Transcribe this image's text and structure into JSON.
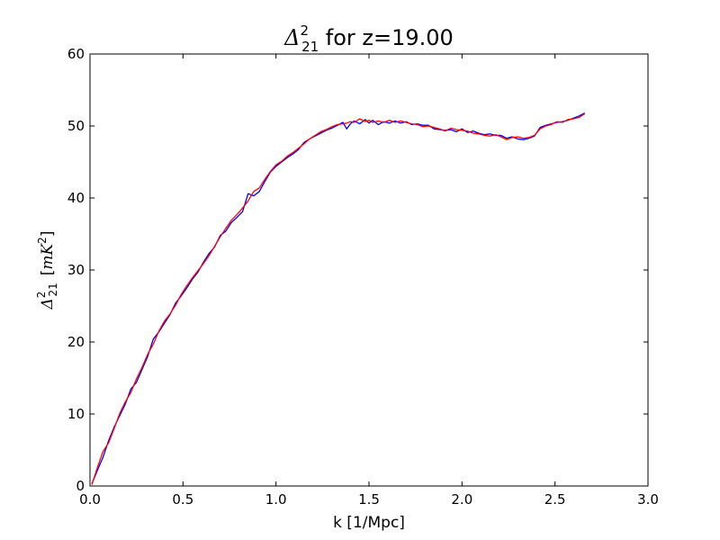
{
  "chart_data": {
    "type": "line",
    "title": {
      "delta_symbol": "Δ",
      "superscript": "2",
      "subscript": "21",
      "suffix": " for z=19.00"
    },
    "xlabel": "k [1/Mpc]",
    "ylabel": {
      "delta_symbol": "Δ",
      "superscript": "2",
      "subscript": "21",
      "unit_open": "[",
      "unit_var": "mK",
      "unit_sup": "2",
      "unit_close": "]"
    },
    "xlim": [
      0,
      3
    ],
    "ylim": [
      0,
      60
    ],
    "xticks": [
      0,
      0.5,
      1,
      1.5,
      2,
      2.5,
      3
    ],
    "xtick_labels": [
      "0.0",
      "0.5",
      "1.0",
      "1.5",
      "2.0",
      "2.5",
      "3.0"
    ],
    "yticks": [
      0,
      10,
      20,
      30,
      40,
      50,
      60
    ],
    "ytick_labels": [
      "0",
      "10",
      "20",
      "30",
      "40",
      "50",
      "60"
    ],
    "grid": false,
    "series": [
      {
        "name": "blue",
        "color": "#0000ff",
        "x": [
          0.01,
          0.04,
          0.07,
          0.1,
          0.13,
          0.16,
          0.19,
          0.22,
          0.25,
          0.28,
          0.31,
          0.34,
          0.37,
          0.4,
          0.43,
          0.46,
          0.49,
          0.52,
          0.55,
          0.58,
          0.61,
          0.64,
          0.67,
          0.7,
          0.73,
          0.76,
          0.79,
          0.82,
          0.85,
          0.88,
          0.91,
          0.94,
          0.97,
          1.0,
          1.03,
          1.06,
          1.09,
          1.12,
          1.15,
          1.18,
          1.21,
          1.24,
          1.27,
          1.3,
          1.33,
          1.36,
          1.38,
          1.4,
          1.42,
          1.45,
          1.48,
          1.5,
          1.52,
          1.55,
          1.58,
          1.61,
          1.64,
          1.67,
          1.7,
          1.73,
          1.76,
          1.79,
          1.82,
          1.85,
          1.88,
          1.91,
          1.94,
          1.97,
          2.0,
          2.03,
          2.06,
          2.09,
          2.12,
          2.15,
          2.18,
          2.21,
          2.24,
          2.27,
          2.3,
          2.33,
          2.36,
          2.39,
          2.42,
          2.45,
          2.48,
          2.51,
          2.54,
          2.57,
          2.6,
          2.63,
          2.66
        ],
        "y": [
          0.3,
          2.2,
          4.0,
          6.3,
          8.2,
          9.8,
          11.4,
          13.5,
          14.4,
          16.2,
          18.0,
          20.4,
          21.4,
          22.6,
          23.8,
          25.4,
          26.4,
          27.5,
          28.7,
          29.7,
          31.1,
          32.3,
          33.2,
          34.8,
          35.4,
          36.6,
          37.3,
          38.1,
          40.6,
          40.3,
          40.9,
          42.3,
          43.6,
          44.4,
          45.0,
          45.6,
          46.1,
          46.7,
          47.7,
          48.2,
          48.6,
          49.0,
          49.4,
          49.7,
          50.1,
          50.5,
          49.6,
          50.3,
          50.7,
          50.3,
          50.9,
          50.4,
          50.8,
          50.2,
          50.6,
          50.4,
          50.7,
          50.4,
          50.6,
          50.2,
          50.3,
          50.1,
          50.1,
          49.6,
          49.5,
          49.4,
          49.5,
          49.2,
          49.6,
          49.1,
          49.3,
          49.0,
          48.8,
          48.9,
          48.7,
          48.7,
          48.3,
          48.5,
          48.2,
          48.1,
          48.3,
          48.6,
          49.8,
          50.1,
          50.3,
          50.5,
          50.6,
          50.8,
          51.1,
          51.4,
          51.8
        ]
      },
      {
        "name": "red",
        "color": "#ff0000",
        "x": [
          0.01,
          0.04,
          0.07,
          0.1,
          0.13,
          0.16,
          0.19,
          0.22,
          0.25,
          0.28,
          0.31,
          0.34,
          0.37,
          0.4,
          0.43,
          0.46,
          0.49,
          0.52,
          0.55,
          0.58,
          0.61,
          0.64,
          0.67,
          0.7,
          0.73,
          0.76,
          0.79,
          0.82,
          0.85,
          0.88,
          0.91,
          0.94,
          0.97,
          1.0,
          1.03,
          1.06,
          1.09,
          1.12,
          1.15,
          1.18,
          1.21,
          1.24,
          1.27,
          1.3,
          1.33,
          1.36,
          1.38,
          1.4,
          1.42,
          1.45,
          1.48,
          1.5,
          1.52,
          1.55,
          1.58,
          1.61,
          1.64,
          1.67,
          1.7,
          1.73,
          1.76,
          1.79,
          1.82,
          1.85,
          1.88,
          1.91,
          1.94,
          1.97,
          2.0,
          2.03,
          2.06,
          2.09,
          2.12,
          2.15,
          2.18,
          2.21,
          2.24,
          2.27,
          2.3,
          2.33,
          2.36,
          2.39,
          2.42,
          2.45,
          2.48,
          2.51,
          2.54,
          2.57,
          2.6,
          2.63,
          2.66
        ],
        "y": [
          0.2,
          2.6,
          4.8,
          6.0,
          8.0,
          10.1,
          11.7,
          13.0,
          14.9,
          16.5,
          18.3,
          19.7,
          21.5,
          22.9,
          23.9,
          25.1,
          26.6,
          27.8,
          28.9,
          29.9,
          30.9,
          32.0,
          33.3,
          34.6,
          35.8,
          36.9,
          37.7,
          38.6,
          39.6,
          40.9,
          41.4,
          42.6,
          43.7,
          44.6,
          45.1,
          45.8,
          46.3,
          46.9,
          47.5,
          48.2,
          48.7,
          49.2,
          49.5,
          49.9,
          50.2,
          50.3,
          50.4,
          50.6,
          50.5,
          51.0,
          50.6,
          50.8,
          50.5,
          50.7,
          50.5,
          50.8,
          50.5,
          50.7,
          50.5,
          50.3,
          50.2,
          49.9,
          50.0,
          49.8,
          49.6,
          49.3,
          49.7,
          49.5,
          49.4,
          49.3,
          49.0,
          48.9,
          48.7,
          48.6,
          48.8,
          48.5,
          48.1,
          48.4,
          48.5,
          48.3,
          48.4,
          48.7,
          49.6,
          50.0,
          50.2,
          50.6,
          50.5,
          50.9,
          51.0,
          51.2,
          51.7
        ]
      }
    ]
  }
}
